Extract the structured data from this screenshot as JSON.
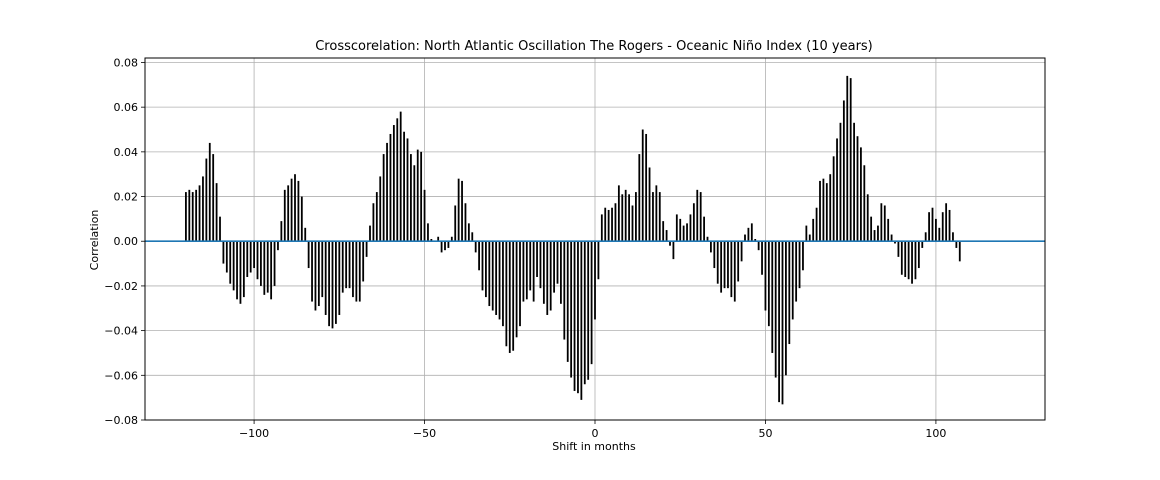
{
  "chart_data": {
    "type": "bar",
    "title": "Crosscorelation: North Atlantic Oscillation The Rogers - Oceanic Niño Index (10 years)",
    "xlabel": "Shift in months",
    "ylabel": "Correlation",
    "xlim": [
      -132,
      132
    ],
    "ylim": [
      -0.08,
      0.082
    ],
    "xticks": [
      -100,
      -50,
      0,
      50,
      100
    ],
    "xtick_labels": [
      "−100",
      "−50",
      "0",
      "50",
      "100"
    ],
    "yticks": [
      -0.08,
      -0.06,
      -0.04,
      -0.02,
      0.0,
      0.02,
      0.04,
      0.06,
      0.08
    ],
    "ytick_labels": [
      "−0.08",
      "−0.06",
      "−0.04",
      "−0.02",
      "0.00",
      "0.02",
      "0.04",
      "0.06",
      "0.08"
    ],
    "grid": true,
    "bar_color": "#000000",
    "zero_line_color": "#1f77b4",
    "series": [
      {
        "x_start": -120,
        "x_step": 1,
        "values": [
          0.022,
          0.023,
          0.022,
          0.023,
          0.025,
          0.029,
          0.037,
          0.044,
          0.039,
          0.026,
          0.011,
          -0.01,
          -0.014,
          -0.019,
          -0.022,
          -0.026,
          -0.028,
          -0.025,
          -0.016,
          -0.014,
          -0.012,
          -0.017,
          -0.02,
          -0.024,
          -0.023,
          -0.026,
          -0.02,
          -0.004,
          0.009,
          0.023,
          0.025,
          0.028,
          0.03,
          0.027,
          0.02,
          0.006,
          -0.012,
          -0.027,
          -0.031,
          -0.029,
          -0.025,
          -0.033,
          -0.038,
          -0.039,
          -0.037,
          -0.033,
          -0.023,
          -0.021,
          -0.021,
          -0.025,
          -0.027,
          -0.027,
          -0.018,
          -0.007,
          0.007,
          0.017,
          0.022,
          0.029,
          0.039,
          0.044,
          0.048,
          0.052,
          0.055,
          0.058,
          0.049,
          0.046,
          0.039,
          0.034,
          0.041,
          0.04,
          0.023,
          0.008,
          0.001,
          0.0,
          0.002,
          -0.005,
          -0.004,
          -0.003,
          0.002,
          0.016,
          0.028,
          0.027,
          0.017,
          0.008,
          0.004,
          -0.005,
          -0.013,
          -0.022,
          -0.025,
          -0.029,
          -0.031,
          -0.033,
          -0.035,
          -0.038,
          -0.047,
          -0.05,
          -0.049,
          -0.043,
          -0.038,
          -0.027,
          -0.026,
          -0.022,
          -0.027,
          -0.016,
          -0.021,
          -0.028,
          -0.033,
          -0.031,
          -0.023,
          -0.019,
          -0.028,
          -0.044,
          -0.054,
          -0.061,
          -0.067,
          -0.068,
          -0.071,
          -0.064,
          -0.062,
          -0.055,
          -0.035,
          -0.017,
          0.012,
          0.015,
          0.014,
          0.015,
          0.017,
          0.025,
          0.021,
          0.023,
          0.021,
          0.016,
          0.022,
          0.039,
          0.05,
          0.048,
          0.033,
          0.022,
          0.025,
          0.022,
          0.009,
          0.005,
          -0.002,
          -0.008,
          0.012,
          0.01,
          0.007,
          0.008,
          0.012,
          0.017,
          0.023,
          0.022,
          0.011,
          0.002,
          -0.005,
          -0.012,
          -0.019,
          -0.023,
          -0.021,
          -0.021,
          -0.025,
          -0.027,
          -0.018,
          -0.009,
          0.003,
          0.006,
          0.008,
          0.001,
          -0.004,
          -0.015,
          -0.031,
          -0.038,
          -0.05,
          -0.061,
          -0.072,
          -0.073,
          -0.06,
          -0.046,
          -0.035,
          -0.027,
          -0.021,
          -0.013,
          0.007,
          0.003,
          0.01,
          0.015,
          0.027,
          0.028,
          0.026,
          0.03,
          0.038,
          0.046,
          0.053,
          0.063,
          0.074,
          0.073,
          0.053,
          0.047,
          0.042,
          0.034,
          0.021,
          0.011,
          0.005,
          0.007,
          0.017,
          0.016,
          0.01,
          0.003,
          -0.001,
          -0.007,
          -0.015,
          -0.016,
          -0.017,
          -0.019,
          -0.017,
          -0.012,
          -0.003,
          0.004,
          0.013,
          0.015,
          0.01,
          0.006,
          0.013,
          0.017,
          0.014,
          0.004,
          -0.003,
          -0.009
        ]
      }
    ]
  }
}
